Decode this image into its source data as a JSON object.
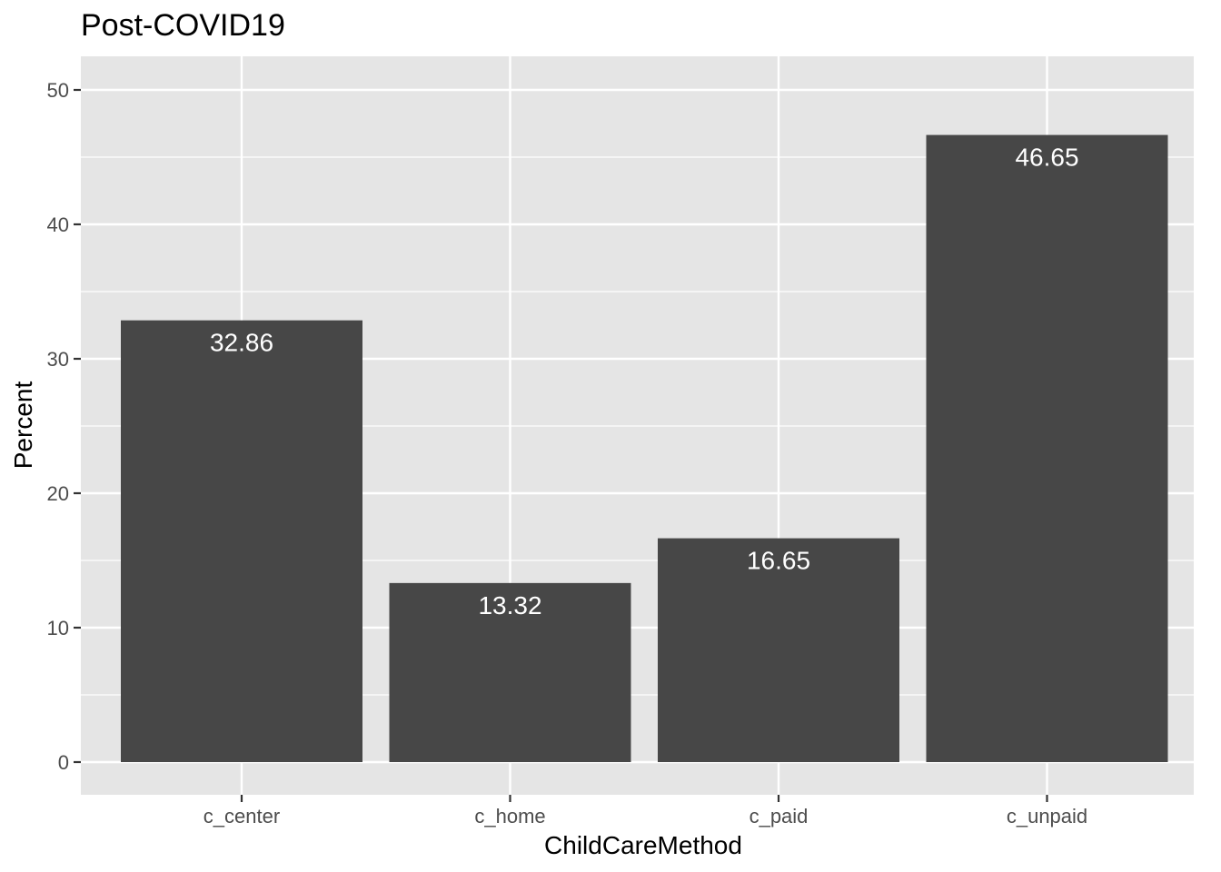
{
  "chart_data": {
    "type": "bar",
    "title": "Post-COVID19",
    "xlabel": "ChildCareMethod",
    "ylabel": "Percent",
    "categories": [
      "c_center",
      "c_home",
      "c_paid",
      "c_unpaid"
    ],
    "values": [
      32.86,
      13.32,
      16.65,
      46.65
    ],
    "data_labels": [
      "32.86",
      "13.32",
      "16.65",
      "46.65"
    ],
    "ylim": [
      0,
      52.5
    ],
    "yticks": [
      0,
      10,
      20,
      30,
      40,
      50
    ],
    "grid": true,
    "legend": "none",
    "colors": {
      "panel_background": "#e5e5e5",
      "grid_major": "#ffffff",
      "bar_fill": "#474747",
      "data_label": "#ffffff"
    }
  }
}
